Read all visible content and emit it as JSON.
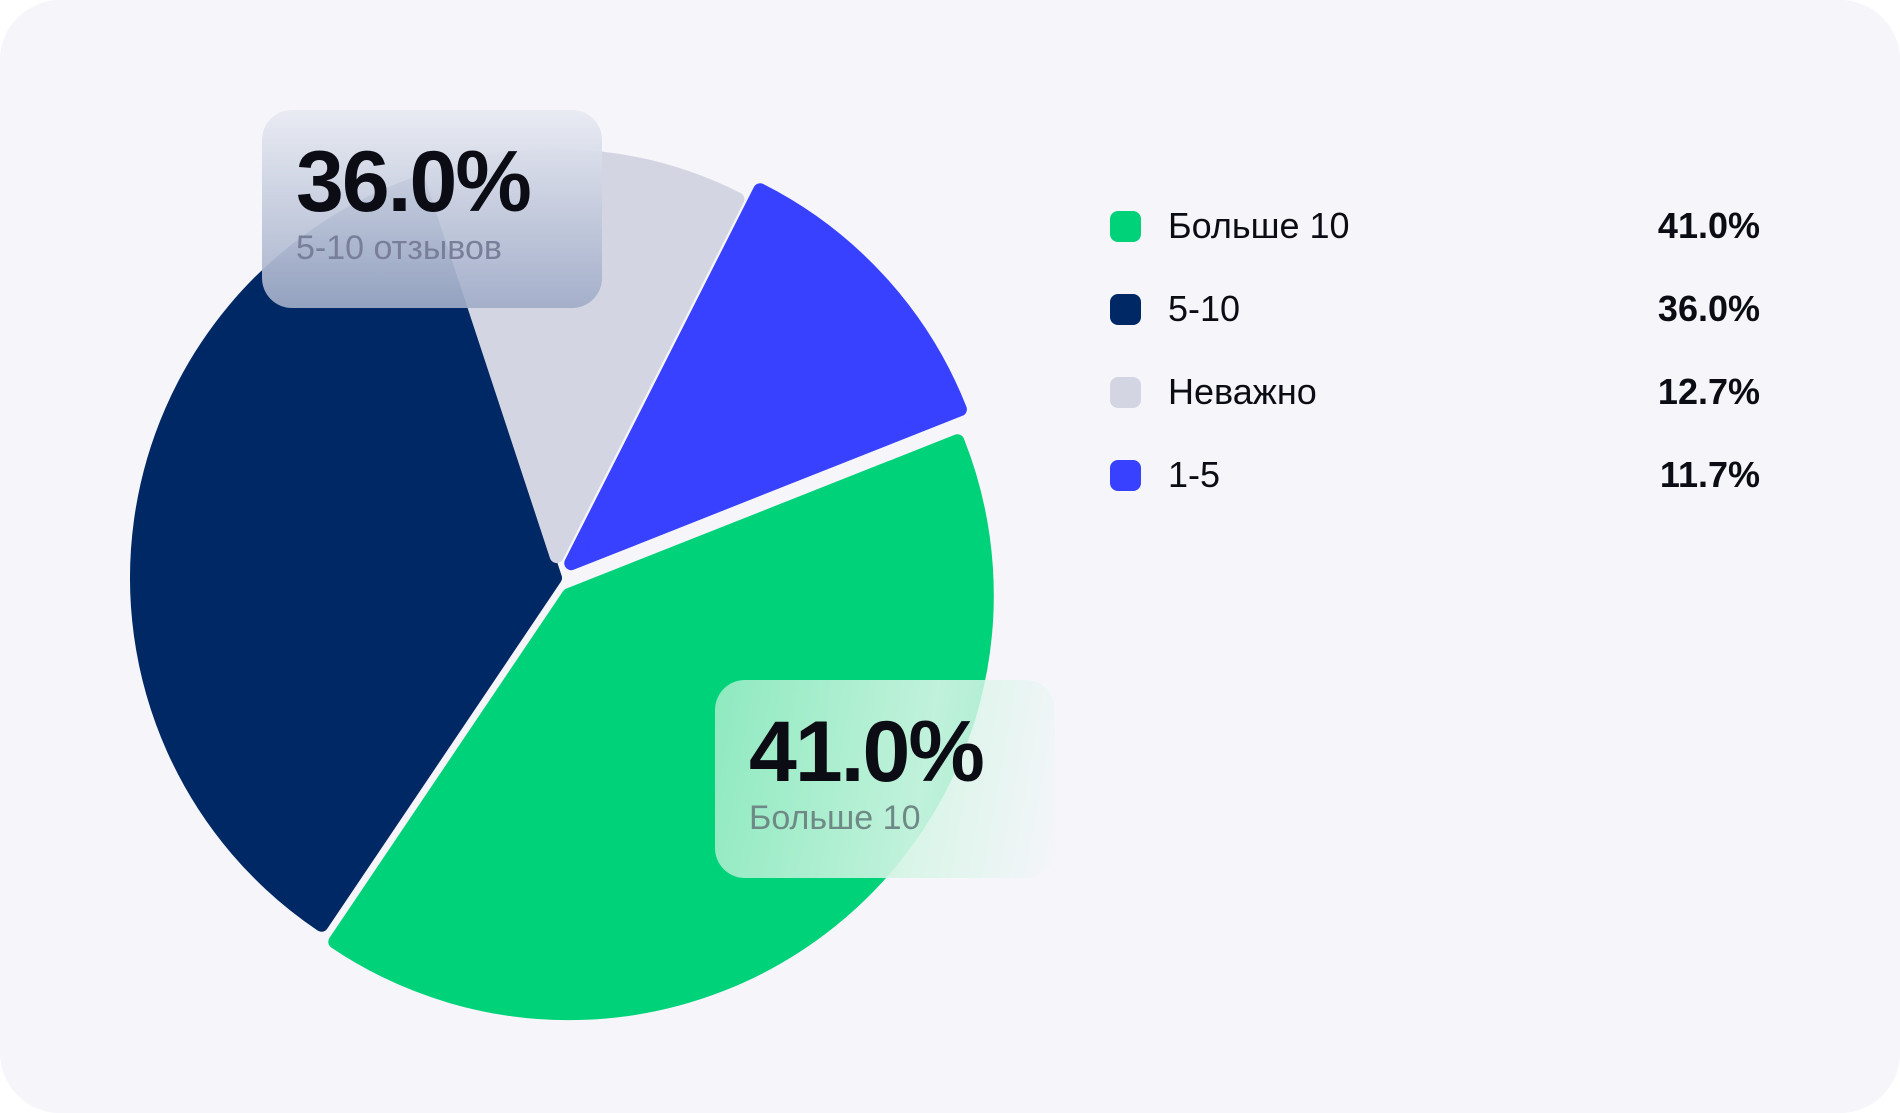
{
  "chart_data": {
    "type": "pie",
    "title": "",
    "slices": [
      {
        "label": "Больше 10",
        "value": 41.0,
        "display": "41.0%",
        "color": "#00d27a"
      },
      {
        "label": "5-10",
        "value": 36.0,
        "display": "36.0%",
        "color": "#002864"
      },
      {
        "label": "Неважно",
        "value": 12.7,
        "display": "12.7%",
        "color": "#d4d5e3"
      },
      {
        "label": "1-5",
        "value": 11.7,
        "display": "11.7%",
        "color": "#3741ff"
      }
    ],
    "legend_position": "right"
  },
  "callouts": {
    "five_to_ten": {
      "value": "36.0%",
      "label": "5-10 отзывов"
    },
    "more_than_ten": {
      "value": "41.0%",
      "label": "Больше 10"
    }
  },
  "legend": {
    "items": [
      {
        "label": "Больше 10",
        "value": "41.0%",
        "color": "#00d27a"
      },
      {
        "label": "5-10",
        "value": "36.0%",
        "color": "#002864"
      },
      {
        "label": "Неважно",
        "value": "12.7%",
        "color": "#d4d5e3"
      },
      {
        "label": "1-5",
        "value": "11.7%",
        "color": "#3741ff"
      }
    ]
  },
  "colors": {
    "background": "#f5f5fa",
    "text": "#0c0c14"
  }
}
